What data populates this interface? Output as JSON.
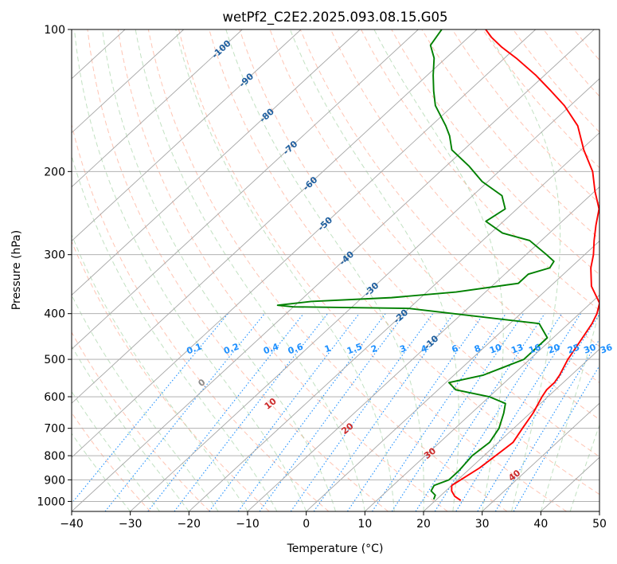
{
  "chart_data": {
    "type": "line",
    "diagram": "skew-T log-P",
    "title": "wetPf2_C2E2.2025.093.08.15.G05",
    "xlabel": "Temperature (°C)",
    "ylabel": "Pressure (hPa)",
    "xlim": [
      -40,
      50
    ],
    "ylim": [
      1050,
      100
    ],
    "y_scale": "log",
    "grid": true,
    "x_ticks": [
      -40,
      -30,
      -20,
      -10,
      0,
      10,
      20,
      30,
      40,
      50
    ],
    "y_ticks": [
      100,
      200,
      300,
      400,
      500,
      600,
      700,
      800,
      900,
      1000
    ],
    "isotherm_labels": [
      "-100",
      "-90",
      "-80",
      "-70",
      "-60",
      "-50",
      "-40",
      "-30",
      "-20",
      "-10"
    ],
    "mixing_ratio_labels": [
      "0.1",
      "0.2",
      "0.4",
      "0.6",
      "1",
      "1.5",
      "2",
      "3",
      "4",
      "6",
      "8",
      "10",
      "13",
      "16",
      "20",
      "25",
      "30",
      "36"
    ],
    "dry_adiabat_labels": [
      "0",
      "10",
      "20",
      "30",
      "40"
    ],
    "colors": {
      "temperature": "#ff0000",
      "dewpoint": "#008000",
      "isotherm_labels": "#1f5f9f",
      "mixing_ratio": "#1e90ff",
      "dry_adiabat": "#ff8c69",
      "moist_adiabat": "#90c990",
      "grid": "#a6a6a6"
    },
    "series": [
      {
        "name": "Temperature",
        "points": [
          [
            24.3,
            995
          ],
          [
            22.5,
            975
          ],
          [
            21.0,
            950
          ],
          [
            20.0,
            925
          ],
          [
            20.5,
            900
          ],
          [
            21.5,
            850
          ],
          [
            22.0,
            800
          ],
          [
            22.5,
            750
          ],
          [
            21.5,
            700
          ],
          [
            20.5,
            650
          ],
          [
            19.0,
            600
          ],
          [
            18.5,
            580
          ],
          [
            18.5,
            560
          ],
          [
            18.0,
            540
          ],
          [
            16.5,
            500
          ],
          [
            15.0,
            450
          ],
          [
            14.0,
            420
          ],
          [
            13.0,
            400
          ],
          [
            11.5,
            380
          ],
          [
            7.0,
            350
          ],
          [
            3.5,
            320
          ],
          [
            1.5,
            300
          ],
          [
            -1.0,
            280
          ],
          [
            -3.5,
            260
          ],
          [
            -6.0,
            240
          ],
          [
            -10.0,
            220
          ],
          [
            -14.0,
            200
          ],
          [
            -19.5,
            180
          ],
          [
            -25.0,
            160
          ],
          [
            -31.0,
            145
          ],
          [
            -36.0,
            135
          ],
          [
            -41.5,
            125
          ],
          [
            -48.0,
            115
          ],
          [
            -52.5,
            109
          ],
          [
            -56.0,
            104
          ],
          [
            -58.5,
            100
          ]
        ]
      },
      {
        "name": "Dewpoint",
        "points": [
          [
            19.5,
            990
          ],
          [
            19.0,
            970
          ],
          [
            17.5,
            950
          ],
          [
            17.0,
            925
          ],
          [
            18.5,
            900
          ],
          [
            18.5,
            860
          ],
          [
            18.0,
            800
          ],
          [
            18.5,
            750
          ],
          [
            17.5,
            700
          ],
          [
            15.5,
            650
          ],
          [
            14.0,
            620
          ],
          [
            10.0,
            600
          ],
          [
            3.0,
            580
          ],
          [
            0.5,
            560
          ],
          [
            5.0,
            540
          ],
          [
            9.0,
            500
          ],
          [
            9.0,
            470
          ],
          [
            9.0,
            450
          ],
          [
            5.0,
            420
          ],
          [
            -20.0,
            390
          ],
          [
            -40.0,
            387
          ],
          [
            -43.0,
            384
          ],
          [
            -38.0,
            377
          ],
          [
            -25.0,
            370
          ],
          [
            -15.0,
            360
          ],
          [
            -6.0,
            345
          ],
          [
            -6.0,
            330
          ],
          [
            -3.5,
            320
          ],
          [
            -4.0,
            310
          ],
          [
            -6.5,
            300
          ],
          [
            -12.0,
            280
          ],
          [
            -18.0,
            270
          ],
          [
            -23.0,
            255
          ],
          [
            -22.0,
            240
          ],
          [
            -25.0,
            225
          ],
          [
            -31.0,
            210
          ],
          [
            -36.0,
            195
          ],
          [
            -42.0,
            180
          ],
          [
            -45.0,
            168
          ],
          [
            -47.5,
            160
          ],
          [
            -53.0,
            145
          ],
          [
            -56.0,
            135
          ],
          [
            -59.0,
            125
          ],
          [
            -62.0,
            115
          ],
          [
            -65.0,
            108
          ],
          [
            -66.0,
            100
          ]
        ]
      }
    ]
  }
}
